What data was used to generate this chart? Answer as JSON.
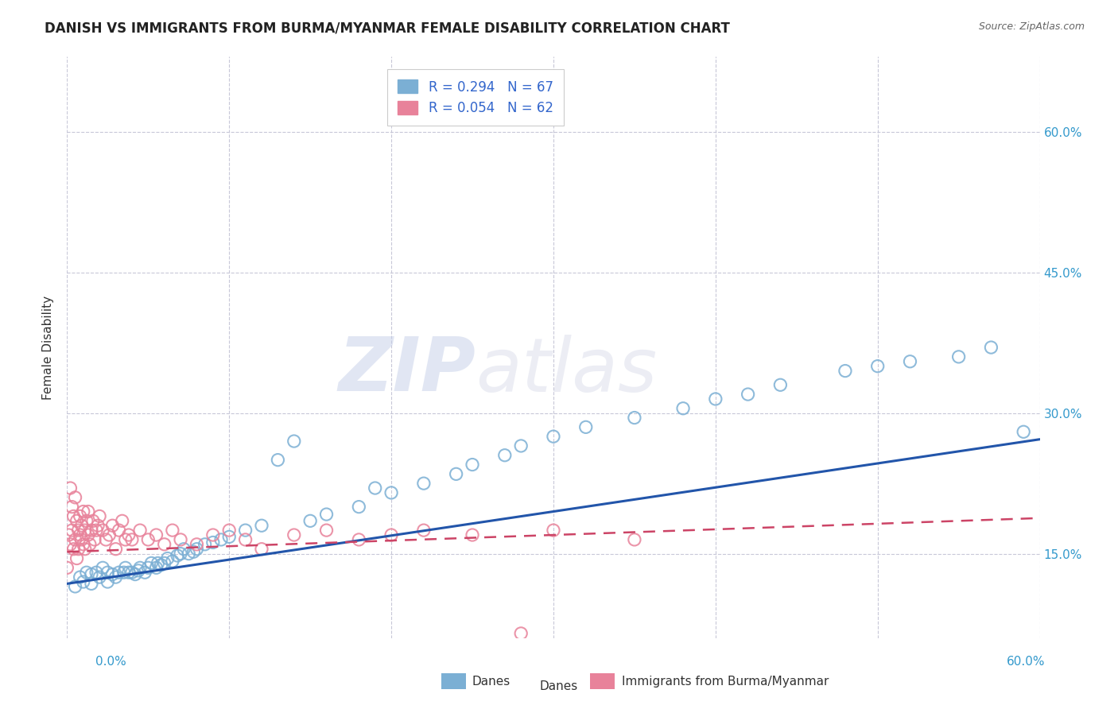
{
  "title": "DANISH VS IMMIGRANTS FROM BURMA/MYANMAR FEMALE DISABILITY CORRELATION CHART",
  "source": "Source: ZipAtlas.com",
  "ylabel": "Female Disability",
  "xlim": [
    0.0,
    0.6
  ],
  "ylim": [
    0.06,
    0.68
  ],
  "ytick_labels": [
    "15.0%",
    "30.0%",
    "45.0%",
    "60.0%"
  ],
  "yticks": [
    0.15,
    0.3,
    0.45,
    0.6
  ],
  "legend_r1": "R = 0.294",
  "legend_n1": "N = 67",
  "legend_r2": "R = 0.054",
  "legend_n2": "N = 62",
  "danes_color": "#7bafd4",
  "immigrants_color": "#e8829a",
  "danes_line_color": "#2255aa",
  "immigrants_line_color": "#cc4466",
  "background_color": "#ffffff",
  "grid_color": "#c8c8d8",
  "watermark_zip": "ZIP",
  "watermark_atlas": "atlas",
  "danes_x": [
    0.005,
    0.008,
    0.01,
    0.012,
    0.015,
    0.015,
    0.018,
    0.02,
    0.022,
    0.025,
    0.025,
    0.028,
    0.03,
    0.032,
    0.035,
    0.036,
    0.038,
    0.04,
    0.042,
    0.044,
    0.045,
    0.048,
    0.05,
    0.052,
    0.055,
    0.056,
    0.058,
    0.06,
    0.062,
    0.065,
    0.068,
    0.07,
    0.072,
    0.075,
    0.078,
    0.08,
    0.085,
    0.09,
    0.095,
    0.1,
    0.11,
    0.12,
    0.13,
    0.14,
    0.15,
    0.16,
    0.18,
    0.19,
    0.2,
    0.22,
    0.24,
    0.25,
    0.27,
    0.28,
    0.3,
    0.32,
    0.35,
    0.38,
    0.4,
    0.42,
    0.44,
    0.48,
    0.5,
    0.52,
    0.55,
    0.57,
    0.59
  ],
  "danes_y": [
    0.115,
    0.125,
    0.12,
    0.13,
    0.118,
    0.128,
    0.13,
    0.125,
    0.135,
    0.12,
    0.13,
    0.128,
    0.125,
    0.13,
    0.13,
    0.135,
    0.13,
    0.13,
    0.128,
    0.132,
    0.135,
    0.13,
    0.135,
    0.14,
    0.135,
    0.14,
    0.138,
    0.14,
    0.145,
    0.142,
    0.148,
    0.15,
    0.155,
    0.15,
    0.152,
    0.155,
    0.16,
    0.162,
    0.165,
    0.168,
    0.175,
    0.18,
    0.25,
    0.27,
    0.185,
    0.192,
    0.2,
    0.22,
    0.215,
    0.225,
    0.235,
    0.245,
    0.255,
    0.265,
    0.275,
    0.285,
    0.295,
    0.305,
    0.315,
    0.32,
    0.33,
    0.345,
    0.35,
    0.355,
    0.36,
    0.37,
    0.28
  ],
  "imm_x": [
    0.0,
    0.001,
    0.002,
    0.002,
    0.003,
    0.003,
    0.004,
    0.004,
    0.005,
    0.005,
    0.006,
    0.006,
    0.007,
    0.007,
    0.008,
    0.008,
    0.009,
    0.009,
    0.01,
    0.01,
    0.011,
    0.011,
    0.012,
    0.013,
    0.013,
    0.014,
    0.015,
    0.016,
    0.017,
    0.018,
    0.019,
    0.02,
    0.022,
    0.024,
    0.026,
    0.028,
    0.03,
    0.032,
    0.034,
    0.036,
    0.038,
    0.04,
    0.045,
    0.05,
    0.055,
    0.06,
    0.065,
    0.07,
    0.08,
    0.09,
    0.1,
    0.11,
    0.12,
    0.14,
    0.16,
    0.18,
    0.2,
    0.22,
    0.25,
    0.28,
    0.3,
    0.35
  ],
  "imm_y": [
    0.135,
    0.17,
    0.22,
    0.16,
    0.2,
    0.175,
    0.19,
    0.155,
    0.165,
    0.21,
    0.145,
    0.185,
    0.175,
    0.155,
    0.17,
    0.19,
    0.165,
    0.18,
    0.16,
    0.195,
    0.175,
    0.155,
    0.185,
    0.17,
    0.195,
    0.16,
    0.175,
    0.185,
    0.165,
    0.175,
    0.18,
    0.19,
    0.175,
    0.165,
    0.17,
    0.18,
    0.155,
    0.175,
    0.185,
    0.165,
    0.17,
    0.165,
    0.175,
    0.165,
    0.17,
    0.16,
    0.175,
    0.165,
    0.16,
    0.17,
    0.175,
    0.165,
    0.155,
    0.17,
    0.175,
    0.165,
    0.17,
    0.175,
    0.17,
    0.065,
    0.175,
    0.165
  ],
  "danes_trend": [
    0.118,
    0.272
  ],
  "imm_trend": [
    0.152,
    0.188
  ]
}
